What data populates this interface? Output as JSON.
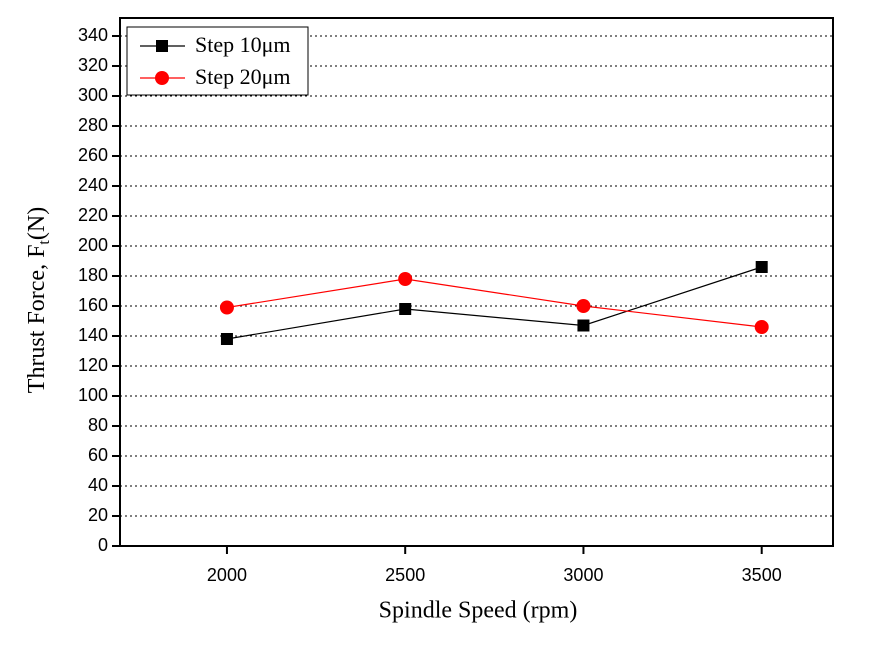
{
  "chart_data": {
    "type": "line",
    "y_label": "Thrust Force, F",
    "y_label_subscript": "t",
    "y_label_suffix": "(N)",
    "x_label": "Spindle Speed (rpm)",
    "x": [
      2000,
      2500,
      3000,
      3500
    ],
    "series": [
      {
        "name": "Step 10μm",
        "color": "#000000",
        "marker": "square",
        "values": [
          138,
          158,
          147,
          186
        ]
      },
      {
        "name": "Step 20μm",
        "color": "#ff0000",
        "marker": "circle",
        "values": [
          159,
          178,
          160,
          146
        ]
      }
    ],
    "xlim": [
      1700,
      3700
    ],
    "xticks": [
      2000,
      2500,
      3000,
      3500
    ],
    "ylim": [
      0,
      352
    ],
    "yticks": [
      0,
      20,
      40,
      60,
      80,
      100,
      120,
      140,
      160,
      180,
      200,
      220,
      240,
      260,
      280,
      300,
      320,
      340
    ],
    "grid": true,
    "legend": "top-left"
  }
}
